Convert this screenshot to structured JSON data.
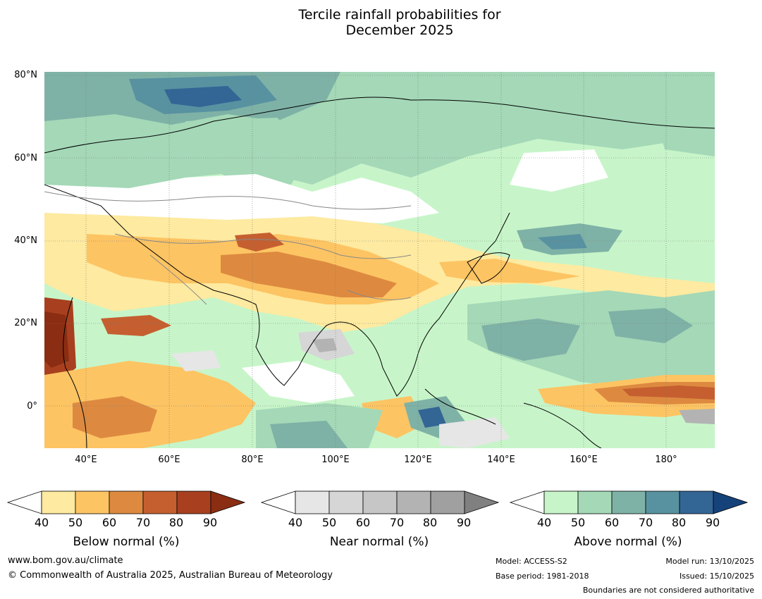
{
  "title_line1": "Tercile rainfall probabilities for",
  "title_line2": "December 2025",
  "map": {
    "lat_labels": [
      "80°N",
      "60°N",
      "40°N",
      "20°N",
      "0°"
    ],
    "lon_labels": [
      "40°E",
      "60°E",
      "80°E",
      "100°E",
      "120°E",
      "140°E",
      "160°E",
      "180°"
    ],
    "lon_range": [
      30,
      191
    ],
    "lat_range": [
      -10,
      81
    ]
  },
  "legends": {
    "below": {
      "title": "Below normal (%)",
      "ticks": [
        "40",
        "50",
        "60",
        "70",
        "80",
        "90"
      ],
      "colors": [
        "#ffffff",
        "#feeaa0",
        "#fdc463",
        "#dd8a40",
        "#c55f30",
        "#a8401f",
        "#8a2d12"
      ]
    },
    "near": {
      "title": "Near normal (%)",
      "ticks": [
        "40",
        "50",
        "60",
        "70",
        "80",
        "90"
      ],
      "colors": [
        "#ffffff",
        "#e6e6e6",
        "#d6d6d6",
        "#c6c6c6",
        "#b3b3b3",
        "#a0a0a0",
        "#808080"
      ]
    },
    "above": {
      "title": "Above normal (%)",
      "ticks": [
        "40",
        "50",
        "60",
        "70",
        "80",
        "90"
      ],
      "colors": [
        "#ffffff",
        "#c7f5c9",
        "#a4d8b7",
        "#7fb2a6",
        "#5892a1",
        "#336595",
        "#16427a"
      ]
    }
  },
  "footer": {
    "website": "www.bom.gov.au/climate",
    "copyright": "© Commonwealth of Australia 2025, Australian Bureau of Meteorology",
    "model": "Model: ACCESS-S2",
    "base_period": "Base period: 1981-2018",
    "model_run": "Model run: 13/10/2025",
    "issued": "Issued: 15/10/2025",
    "disclaimer": "Boundaries are not considered authoritative"
  }
}
